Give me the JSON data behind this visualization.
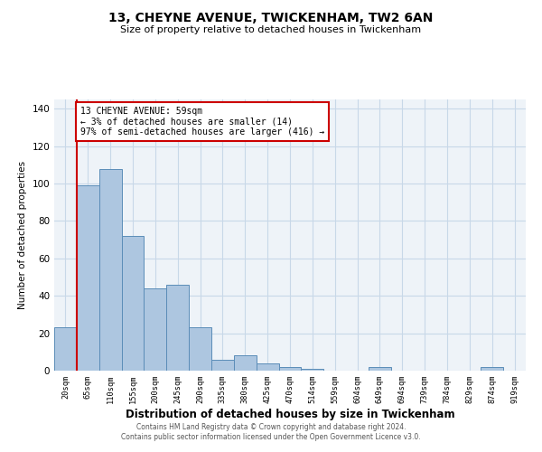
{
  "title1": "13, CHEYNE AVENUE, TWICKENHAM, TW2 6AN",
  "title2": "Size of property relative to detached houses in Twickenham",
  "xlabel": "Distribution of detached houses by size in Twickenham",
  "ylabel": "Number of detached properties",
  "footer1": "Contains HM Land Registry data © Crown copyright and database right 2024.",
  "footer2": "Contains public sector information licensed under the Open Government Licence v3.0.",
  "annotation_title": "13 CHEYNE AVENUE: 59sqm",
  "annotation_line2": "← 3% of detached houses are smaller (14)",
  "annotation_line3": "97% of semi-detached houses are larger (416) →",
  "bar_color": "#adc6e0",
  "bar_edge_color": "#5b8db8",
  "grid_color": "#c8d8e8",
  "bg_color": "#eef3f8",
  "highlight_color": "#cc0000",
  "categories": [
    "20sqm",
    "65sqm",
    "110sqm",
    "155sqm",
    "200sqm",
    "245sqm",
    "290sqm",
    "335sqm",
    "380sqm",
    "425sqm",
    "470sqm",
    "514sqm",
    "559sqm",
    "604sqm",
    "649sqm",
    "694sqm",
    "739sqm",
    "784sqm",
    "829sqm",
    "874sqm",
    "919sqm"
  ],
  "values": [
    23,
    99,
    108,
    72,
    44,
    46,
    23,
    6,
    8,
    4,
    2,
    1,
    0,
    0,
    2,
    0,
    0,
    0,
    0,
    2,
    0
  ],
  "ylim": [
    0,
    145
  ],
  "yticks": [
    0,
    20,
    40,
    60,
    80,
    100,
    120,
    140
  ],
  "highlight_bar_index": 1
}
